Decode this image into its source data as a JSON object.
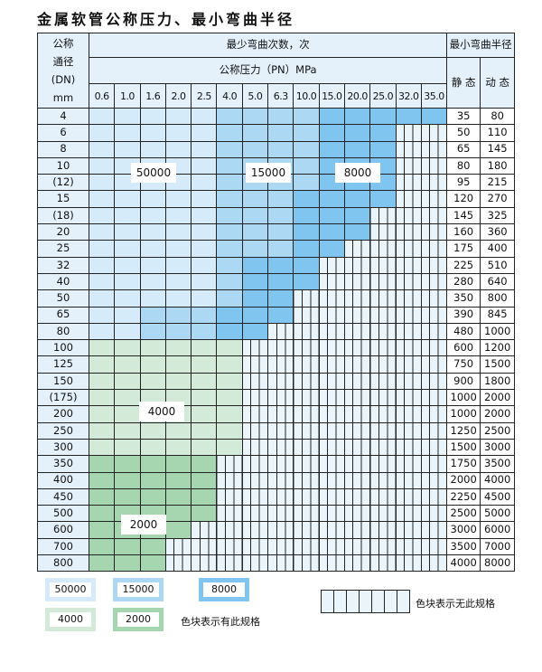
{
  "title": "金属软管公称压力、最小弯曲半径",
  "header": {
    "dn_label": [
      "公称",
      "通径",
      "(DN)",
      "mm"
    ],
    "bend_count": "最少弯曲次数，次",
    "pressure": "公称压力（PN）MPa",
    "min_radius": "最小弯曲半径",
    "static": "静 态",
    "dynamic": "动 态"
  },
  "pressures": [
    "0.6",
    "1.0",
    "1.6",
    "2.0",
    "2.5",
    "4.0",
    "5.0",
    "6.3",
    "10.0",
    "15.0",
    "20.0",
    "25.0",
    "32.0",
    "35.0"
  ],
  "colors": {
    "c50000": "#d6ebf9",
    "c15000": "#acd8f4",
    "c8000": "#80c5ef",
    "c4000": "#d3ead8",
    "c2000": "#a6d6b0"
  },
  "rows": [
    {
      "dn": "4",
      "static": "35",
      "dynamic": "80",
      "tiers": [
        "50000",
        5,
        "15000",
        4,
        "8000",
        5
      ]
    },
    {
      "dn": "6",
      "static": "50",
      "dynamic": "110",
      "tiers": [
        "50000",
        5,
        "15000",
        4,
        "8000",
        3
      ]
    },
    {
      "dn": "8",
      "static": "65",
      "dynamic": "145",
      "tiers": [
        "50000",
        5,
        "15000",
        4,
        "8000",
        3
      ]
    },
    {
      "dn": "10",
      "static": "80",
      "dynamic": "180",
      "tiers": [
        "50000",
        5,
        "15000",
        4,
        "8000",
        3
      ]
    },
    {
      "dn": "(12)",
      "static": "95",
      "dynamic": "215",
      "tiers": [
        "50000",
        5,
        "15000",
        4,
        "8000",
        3
      ]
    },
    {
      "dn": "15",
      "static": "120",
      "dynamic": "270",
      "tiers": [
        "50000",
        5,
        "15000",
        3,
        "8000",
        4
      ]
    },
    {
      "dn": "(18)",
      "static": "145",
      "dynamic": "325",
      "tiers": [
        "50000",
        5,
        "15000",
        3,
        "8000",
        3
      ]
    },
    {
      "dn": "20",
      "static": "160",
      "dynamic": "360",
      "tiers": [
        "50000",
        5,
        "15000",
        3,
        "8000",
        3
      ]
    },
    {
      "dn": "25",
      "static": "175",
      "dynamic": "400",
      "tiers": [
        "50000",
        5,
        "15000",
        3,
        "8000",
        2
      ]
    },
    {
      "dn": "32",
      "static": "225",
      "dynamic": "510",
      "tiers": [
        "50000",
        5,
        "15000",
        1,
        "8000",
        3
      ]
    },
    {
      "dn": "40",
      "static": "280",
      "dynamic": "640",
      "tiers": [
        "50000",
        5,
        "15000",
        1,
        "8000",
        3
      ]
    },
    {
      "dn": "50",
      "static": "350",
      "dynamic": "800",
      "tiers": [
        "50000",
        5,
        "15000",
        1,
        "8000",
        2
      ]
    },
    {
      "dn": "65",
      "static": "390",
      "dynamic": "845",
      "tiers": [
        "50000",
        2,
        "15000",
        3,
        "8000",
        3
      ]
    },
    {
      "dn": "80",
      "static": "480",
      "dynamic": "1000",
      "tiers": [
        "50000",
        2,
        "15000",
        3,
        "8000",
        2
      ]
    },
    {
      "dn": "100",
      "static": "600",
      "dynamic": "1200",
      "tiers": [
        "4000",
        6
      ]
    },
    {
      "dn": "125",
      "static": "750",
      "dynamic": "1500",
      "tiers": [
        "4000",
        6
      ]
    },
    {
      "dn": "150",
      "static": "900",
      "dynamic": "1800",
      "tiers": [
        "4000",
        6
      ]
    },
    {
      "dn": "(175)",
      "static": "1000",
      "dynamic": "2000",
      "tiers": [
        "4000",
        6
      ]
    },
    {
      "dn": "200",
      "static": "1000",
      "dynamic": "2000",
      "tiers": [
        "4000",
        6
      ]
    },
    {
      "dn": "250",
      "static": "1250",
      "dynamic": "2500",
      "tiers": [
        "4000",
        6
      ]
    },
    {
      "dn": "300",
      "static": "1500",
      "dynamic": "3000",
      "tiers": [
        "4000",
        6
      ]
    },
    {
      "dn": "350",
      "static": "1750",
      "dynamic": "3500",
      "tiers": [
        "2000",
        5
      ]
    },
    {
      "dn": "400",
      "static": "2000",
      "dynamic": "4000",
      "tiers": [
        "2000",
        5
      ]
    },
    {
      "dn": "450",
      "static": "2250",
      "dynamic": "4500",
      "tiers": [
        "2000",
        5
      ]
    },
    {
      "dn": "500",
      "static": "2500",
      "dynamic": "5000",
      "tiers": [
        "2000",
        5
      ]
    },
    {
      "dn": "600",
      "static": "3000",
      "dynamic": "6000",
      "tiers": [
        "2000",
        4
      ]
    },
    {
      "dn": "700",
      "static": "3500",
      "dynamic": "7000",
      "tiers": [
        "2000",
        3
      ]
    },
    {
      "dn": "800",
      "static": "4000",
      "dynamic": "8000",
      "tiers": [
        "2000",
        3
      ]
    }
  ],
  "region_labels": {
    "l50000": "50000",
    "l15000": "15000",
    "l8000": "8000",
    "l4000": "4000",
    "l2000": "2000"
  },
  "legend": {
    "items": [
      "50000",
      "15000",
      "8000",
      "4000",
      "2000"
    ],
    "has_spec": "色块表示有此规格",
    "no_spec": "色块表示无此规格"
  }
}
